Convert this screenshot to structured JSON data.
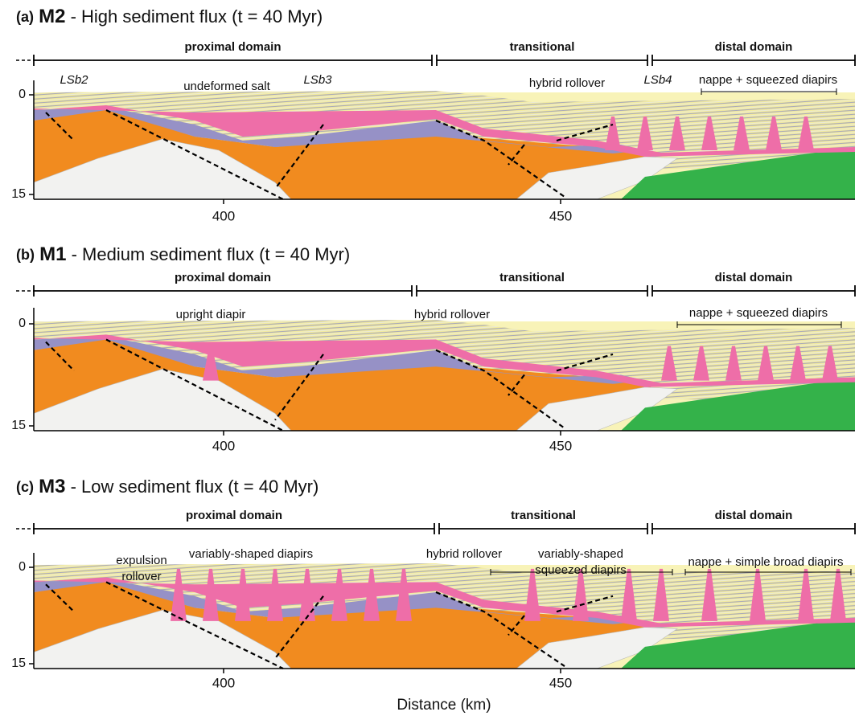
{
  "panels": [
    {
      "label": "(a)",
      "model": "M2",
      "title": "- High sediment flux (t = 40 Myr)",
      "domains": [
        "proximal domain",
        "transitional",
        "distal domain"
      ],
      "annotations": [
        "LSb2",
        "undeformed salt",
        "LSb3",
        "hybrid rollover",
        "LSb4",
        "nappe + squeezed diapirs"
      ],
      "y_ticks": [
        "0",
        "15"
      ],
      "x_ticks": [
        "400",
        "450"
      ]
    },
    {
      "label": "(b)",
      "model": "M1",
      "title": "- Medium sediment flux (t = 40 Myr)",
      "domains": [
        "proximal domain",
        "transitional",
        "distal domain"
      ],
      "annotations": [
        "upright diapir",
        "hybrid rollover",
        "nappe + squeezed diapirs"
      ],
      "y_ticks": [
        "0",
        "15"
      ],
      "x_ticks": [
        "400",
        "450"
      ]
    },
    {
      "label": "(c)",
      "model": "M3",
      "title": "- Low sediment flux (t = 40 Myr)",
      "domains": [
        "proximal domain",
        "transitional",
        "distal domain"
      ],
      "annotations": [
        [
          "expulsion",
          "rollover"
        ],
        "variably-shaped diapirs",
        "hybrid rollover",
        [
          "variably-shaped",
          "squeezed diapirs"
        ],
        "nappe + simple broad diapirs"
      ],
      "y_ticks": [
        "0",
        "15"
      ],
      "x_ticks": [
        "400",
        "450"
      ]
    }
  ],
  "x_axis_label": "Distance (km)"
}
